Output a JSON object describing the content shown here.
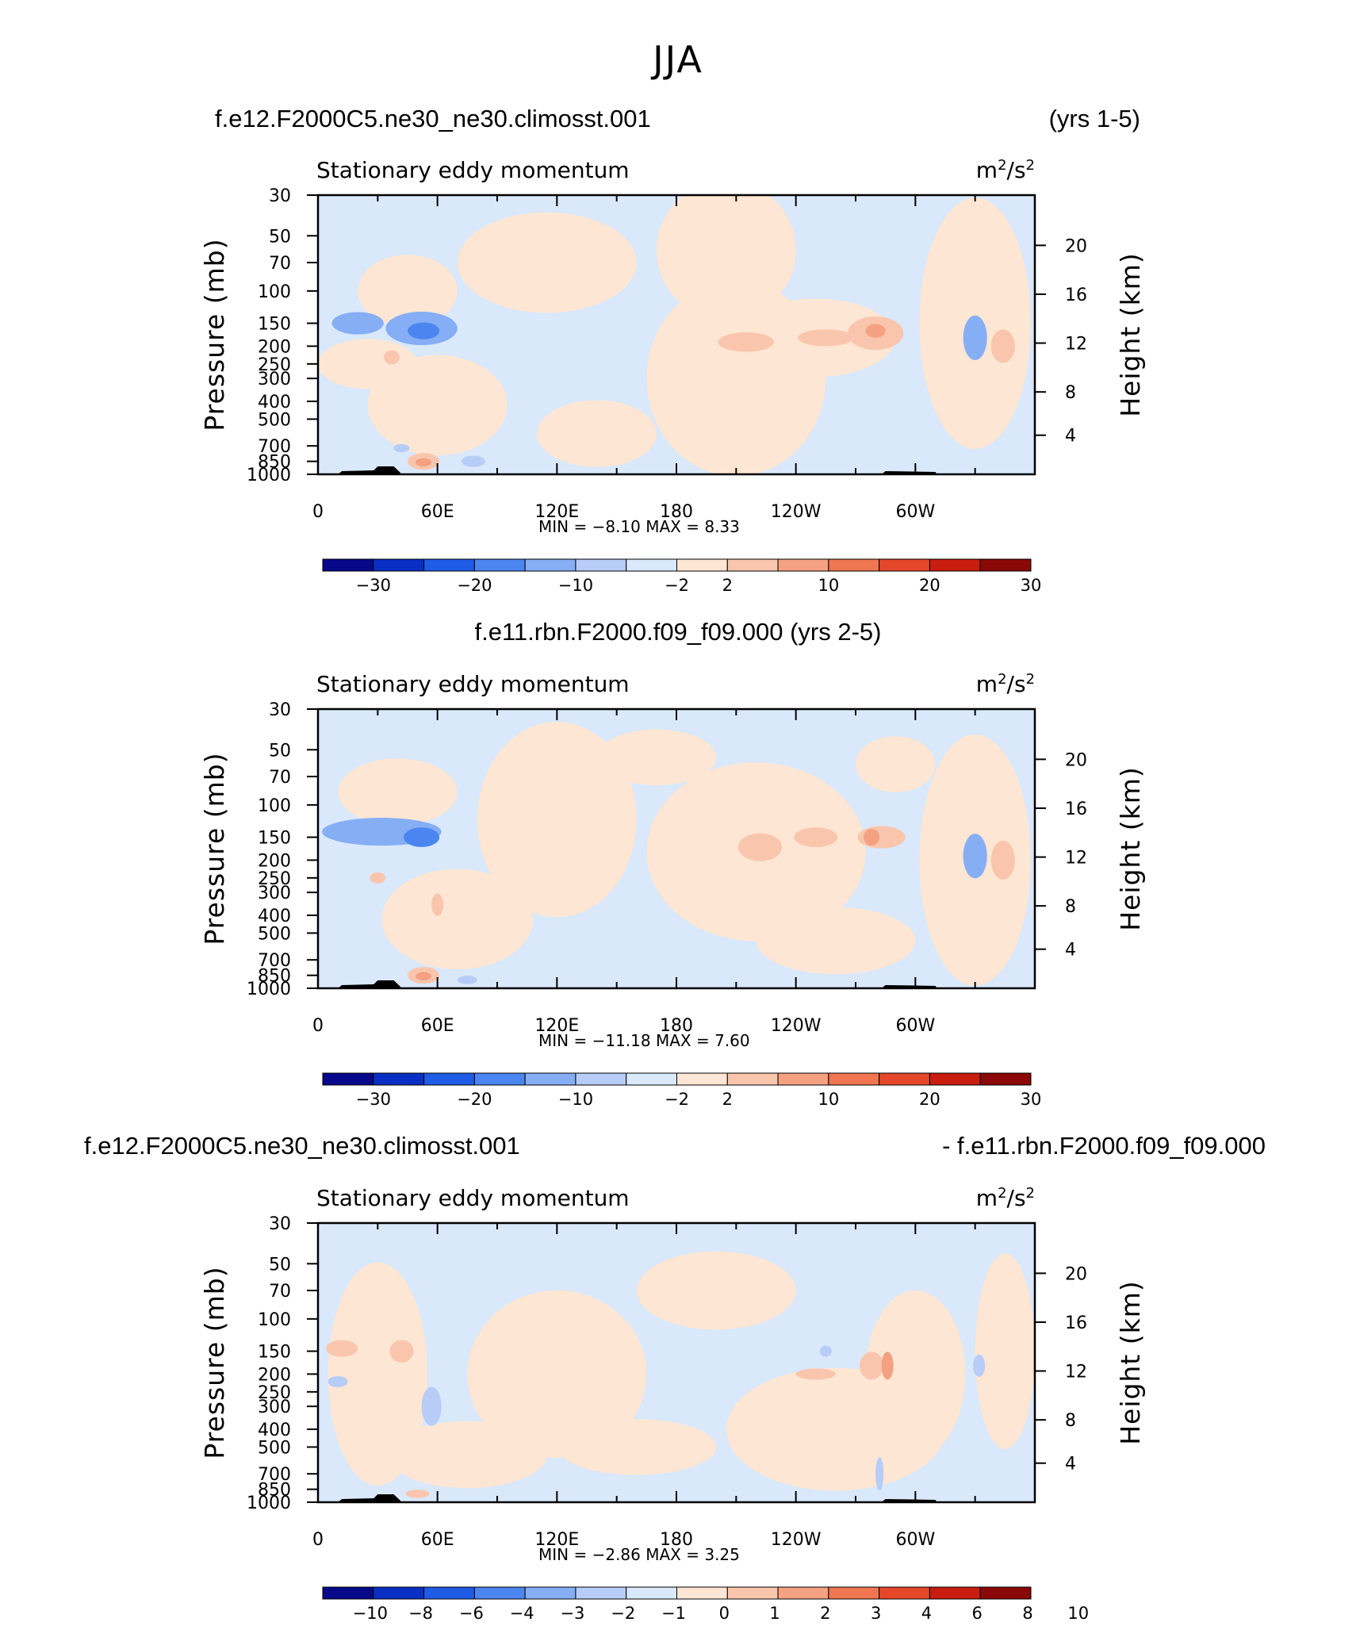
{
  "title": "JJA",
  "colors": {
    "palette": [
      "#08088a",
      "#0a2fc4",
      "#1f5ce6",
      "#4b85f0",
      "#86aef5",
      "#b7cdf7",
      "#d9e8fa",
      "#fde6d3",
      "#f9c6ad",
      "#f4a182",
      "#ef7650",
      "#e5472a",
      "#c91d10",
      "#8a0808"
    ],
    "lightBlue": "#d9e8fa",
    "lightOrange": "#fde6d3"
  },
  "panels": [
    {
      "id": "panel-1",
      "header_left": "f.e12.F2000C5.ne30_ne30.climosst.001",
      "header_right": "(yrs 1-5)",
      "header_center": "",
      "subtitle_left": "Stationary eddy momentum",
      "units_base": "m",
      "units_exp1": "2",
      "units_mid": "/s",
      "units_exp2": "2",
      "stats_text": "MIN =   −8.10   MAX =    8.33",
      "colorbar_labels": [
        "−30",
        "−20",
        "−10",
        "−2",
        "2",
        "10",
        "20",
        "30"
      ]
    },
    {
      "id": "panel-2",
      "header_left": "",
      "header_right": "",
      "header_center": "f.e11.rbn.F2000.f09_f09.000 (yrs 2-5)",
      "subtitle_left": "Stationary eddy momentum",
      "units_base": "m",
      "units_exp1": "2",
      "units_mid": "/s",
      "units_exp2": "2",
      "stats_text": "MIN =  −11.18   MAX =    7.60",
      "colorbar_labels": [
        "−30",
        "−20",
        "−10",
        "−2",
        "2",
        "10",
        "20",
        "30"
      ]
    },
    {
      "id": "panel-3",
      "header_left": "f.e12.F2000C5.ne30_ne30.climosst.001",
      "header_right": "- f.e11.rbn.F2000.f09_f09.000",
      "header_center": "",
      "subtitle_left": "Stationary eddy momentum",
      "units_base": "m",
      "units_exp1": "2",
      "units_mid": "/s",
      "units_exp2": "2",
      "stats_text": "MIN =   −2.86   MAX =    3.25",
      "colorbar_labels": [
        "−10",
        "−8",
        "−6",
        "−4",
        "−3",
        "−2",
        "−1",
        "0",
        "1",
        "2",
        "3",
        "4",
        "6",
        "8",
        "10"
      ]
    }
  ],
  "chart_data": {
    "type": "heatmap",
    "title": "JJA",
    "xlabel": "",
    "ylabel": "Pressure (mb)",
    "y2label": "Height (km)",
    "x_ticks": [
      "0",
      "60E",
      "120E",
      "180",
      "120W",
      "60W"
    ],
    "y_ticks": [
      "30",
      "50",
      "70",
      "100",
      "150",
      "200",
      "250",
      "300",
      "400",
      "500",
      "700",
      "850",
      "1000"
    ],
    "y2_ticks": [
      "20",
      "16",
      "12",
      "8",
      "4"
    ],
    "ylim": [
      1000,
      30
    ],
    "variable": "Stationary eddy momentum",
    "units": "m2/s2",
    "fields": [
      {
        "name": "f.e12.F2000C5.ne30_ne30.climosst.001 (yrs 1-5)",
        "min": -8.1,
        "max": 8.33,
        "levels": [
          -30,
          -25,
          -20,
          -15,
          -10,
          -5,
          -2,
          0,
          2,
          5,
          10,
          15,
          20,
          25,
          30
        ]
      },
      {
        "name": "f.e11.rbn.F2000.f09_f09.000 (yrs 2-5)",
        "min": -11.18,
        "max": 7.6,
        "levels": [
          -30,
          -25,
          -20,
          -15,
          -10,
          -5,
          -2,
          0,
          2,
          5,
          10,
          15,
          20,
          25,
          30
        ]
      },
      {
        "name": "f.e12.F2000C5.ne30_ne30.climosst.001 - f.e11.rbn.F2000.f09_f09.000",
        "min": -2.86,
        "max": 3.25,
        "levels": [
          -10,
          -8,
          -6,
          -4,
          -3,
          -2,
          -1,
          0,
          1,
          2,
          3,
          4,
          6,
          8,
          10
        ]
      }
    ]
  }
}
